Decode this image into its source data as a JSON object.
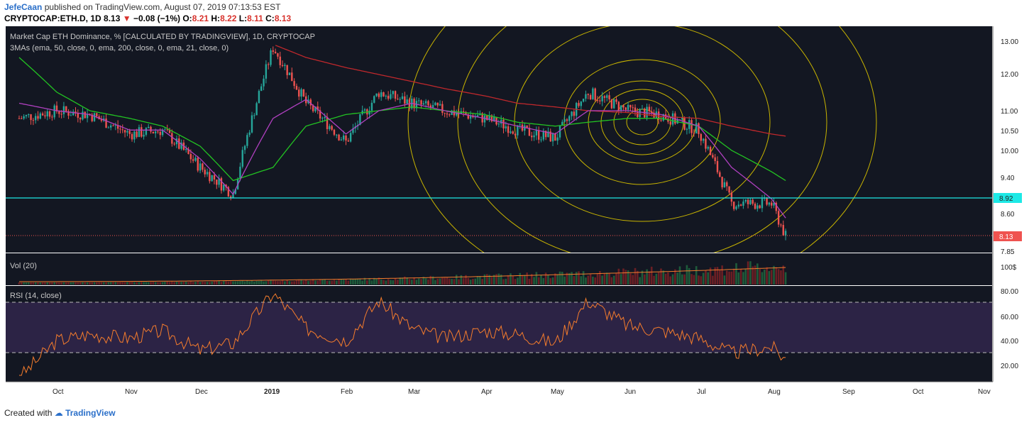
{
  "header": {
    "author": "JefeCaan",
    "published": "published on TradingView.com, August 07, 2019 07:13:53 EST",
    "symbol_line": "CRYPTOCAP:ETH.D, 1D 8.13",
    "change": "−0.08 (−1%)",
    "o_label": "O:",
    "o_value": "8.21",
    "h_label": "H:",
    "h_value": "8.22",
    "l_label": "L:",
    "l_value": "8.11",
    "c_label": "C:",
    "c_value": "8.13"
  },
  "main_panel": {
    "title": "Market Cap ETH Dominance, % [CALCULATED BY TRADINGVIEW], 1D, CRYPTOCAP",
    "indicator": "3MAs (ema, 50, close, 0, ema, 200, close, 0, ema, 21, close, 0)",
    "price_ticks": [
      "13.00",
      "12.00",
      "11.00",
      "10.50",
      "10.00",
      "9.40",
      "8.60",
      "7.85"
    ],
    "cyan_level_label": "8.92",
    "last_price_label": "8.13"
  },
  "vol_panel": {
    "title": "Vol (20)",
    "tick": "100$"
  },
  "rsi_panel": {
    "title": "RSI (14, close)",
    "ticks": [
      "80.00",
      "60.00",
      "40.00",
      "20.00"
    ]
  },
  "date_labels": [
    "Oct",
    "Nov",
    "Dec",
    "2019",
    "Feb",
    "Mar",
    "Apr",
    "May",
    "Jun",
    "Jul",
    "Aug",
    "Sep",
    "Oct",
    "Nov"
  ],
  "footer": {
    "created_with": "Created with",
    "brand": "TradingView"
  },
  "colors": {
    "background": "#131722",
    "up": "#26a69a",
    "down": "#ef5350",
    "ema50": "#22c322",
    "ema200": "#c0282c",
    "ema21": "#b040c0",
    "circles": "#c8b400",
    "cyan_level": "#1de9e6",
    "rsi_line": "#f57c2c",
    "rsi_band": "#2c2345"
  },
  "chart_data": [
    {
      "type": "line",
      "title": "Market Cap ETH Dominance, % [CALCULATED BY TRADINGVIEW], 1D, CRYPTOCAP",
      "ylabel": "%",
      "ylim": [
        7.85,
        13.0
      ],
      "scale": "log",
      "x": [
        "2018-09-15",
        "2018-10-01",
        "2018-10-15",
        "2018-11-01",
        "2018-11-15",
        "2018-12-01",
        "2018-12-15",
        "2019-01-01",
        "2019-01-15",
        "2019-02-01",
        "2019-02-15",
        "2019-03-01",
        "2019-03-15",
        "2019-04-01",
        "2019-04-15",
        "2019-05-01",
        "2019-05-15",
        "2019-06-01",
        "2019-06-15",
        "2019-07-01",
        "2019-07-15",
        "2019-08-01",
        "2019-08-07"
      ],
      "series": [
        {
          "values": [
            10.8,
            11.0,
            10.9,
            10.4,
            10.5,
            9.6,
            9.0,
            12.8,
            11.2,
            10.2,
            11.5,
            11.2,
            11.0,
            10.8,
            10.5,
            10.3,
            11.5,
            11.0,
            10.9,
            10.5,
            8.8,
            8.8,
            8.13
          ]
        },
        {
          "name": "ema50",
          "values": [
            12.5,
            11.5,
            11.0,
            10.8,
            10.6,
            10.1,
            9.3,
            9.6,
            10.6,
            10.9,
            11.0,
            11.1,
            11.0,
            10.9,
            10.7,
            10.6,
            10.7,
            10.8,
            10.8,
            10.6,
            10.0,
            9.5,
            9.3
          ]
        },
        {
          "name": "ema200",
          "values": [
            null,
            null,
            null,
            null,
            null,
            null,
            null,
            12.9,
            12.5,
            12.2,
            12.0,
            11.8,
            11.6,
            11.4,
            11.2,
            11.1,
            11.0,
            10.95,
            10.85,
            10.8,
            10.6,
            10.4,
            10.35
          ]
        },
        {
          "name": "ema21",
          "values": [
            11.2,
            11.0,
            10.9,
            10.5,
            10.5,
            9.8,
            9.0,
            10.8,
            11.3,
            10.4,
            11.0,
            11.2,
            11.0,
            10.8,
            10.6,
            10.4,
            11.0,
            11.0,
            10.9,
            10.6,
            9.6,
            8.9,
            8.5
          ]
        }
      ],
      "annotations": [
        "horizontal level 8.92",
        "last price 8.13",
        "concentric circles"
      ]
    },
    {
      "type": "line",
      "title": "RSI (14, close)",
      "ylim": [
        10,
        83
      ],
      "bands": [
        30,
        70
      ],
      "x": [
        "2018-09-15",
        "2018-10-01",
        "2018-10-15",
        "2018-11-01",
        "2018-11-15",
        "2018-12-01",
        "2018-12-15",
        "2019-01-01",
        "2019-01-15",
        "2019-02-01",
        "2019-02-15",
        "2019-03-01",
        "2019-03-15",
        "2019-04-01",
        "2019-04-15",
        "2019-05-01",
        "2019-05-15",
        "2019-06-01",
        "2019-06-15",
        "2019-07-01",
        "2019-07-15",
        "2019-08-01",
        "2019-08-07"
      ],
      "series": [
        {
          "values": [
            10,
            40,
            45,
            42,
            48,
            32,
            38,
            78,
            50,
            40,
            72,
            50,
            42,
            48,
            45,
            38,
            72,
            52,
            48,
            42,
            30,
            35,
            25
          ]
        }
      ]
    }
  ]
}
